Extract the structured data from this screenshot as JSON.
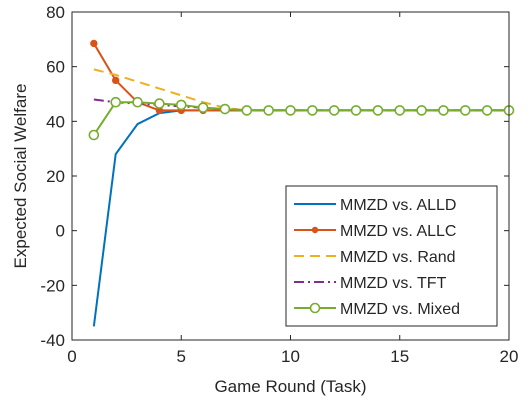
{
  "chart_data": {
    "type": "line",
    "title": "",
    "xlabel": "Game Round (Task)",
    "ylabel": "Expected Social Welfare",
    "xlim": [
      0,
      20
    ],
    "ylim": [
      -40,
      80
    ],
    "xticks": [
      0,
      5,
      10,
      15,
      20
    ],
    "yticks": [
      -40,
      -20,
      0,
      20,
      40,
      60,
      80
    ],
    "xtick_labels": [
      "0",
      "5",
      "10",
      "15",
      "20"
    ],
    "ytick_labels": [
      "-40",
      "-20",
      "0",
      "20",
      "40",
      "60",
      "80"
    ],
    "grid": false,
    "legend_position": "bottom-right",
    "x": [
      1,
      2,
      3,
      4,
      5,
      6,
      7,
      8,
      9,
      10,
      11,
      12,
      13,
      14,
      15,
      16,
      17,
      18,
      19,
      20
    ],
    "series": [
      {
        "name": "MMZD vs. ALLD",
        "color": "#0072BD",
        "style": "solid",
        "marker": "none",
        "values": [
          -35,
          28,
          39,
          43,
          44,
          44,
          44,
          44,
          44,
          44,
          44,
          44,
          44,
          44,
          44,
          44,
          44,
          44,
          44,
          44
        ]
      },
      {
        "name": "MMZD vs. ALLC",
        "color": "#D95319",
        "style": "solid",
        "marker": "dot",
        "values": [
          68.5,
          55,
          47,
          44,
          44,
          44,
          44,
          44,
          44,
          44,
          44,
          44,
          44,
          44,
          44,
          44,
          44,
          44,
          44,
          44
        ]
      },
      {
        "name": "MMZD vs. Rand",
        "color": "#EDB120",
        "style": "dashed",
        "marker": "none",
        "values": [
          59,
          57,
          54.5,
          52,
          49.5,
          47,
          45,
          44,
          44,
          44,
          44,
          44,
          44,
          44,
          44,
          44,
          44,
          44,
          44,
          44
        ]
      },
      {
        "name": "MMZD vs. TFT",
        "color": "#7E2F8E",
        "style": "dashdot",
        "marker": "none",
        "values": [
          48,
          47,
          46.5,
          46,
          45.5,
          45,
          44.5,
          44,
          44,
          44,
          44,
          44,
          44,
          44,
          44,
          44,
          44,
          44,
          44,
          44
        ]
      },
      {
        "name": "MMZD vs. Mixed",
        "color": "#77AC30",
        "style": "solid",
        "marker": "circle",
        "values": [
          35,
          47,
          47,
          46.5,
          46,
          45,
          44.5,
          44,
          44,
          44,
          44,
          44,
          44,
          44,
          44,
          44,
          44,
          44,
          44,
          44
        ]
      }
    ]
  }
}
